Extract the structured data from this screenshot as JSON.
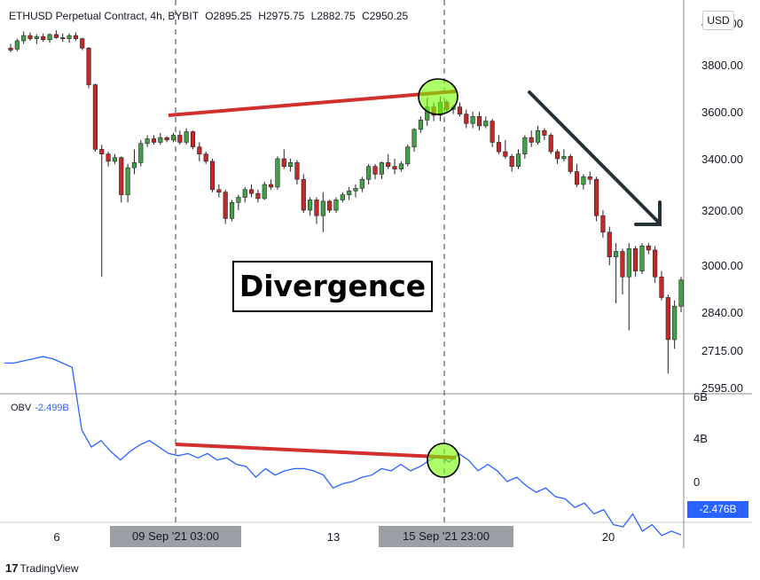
{
  "header": {
    "symbol": "ETHUSD Perpetual Contract, 4h, BYBIT",
    "open": "O2895.25",
    "high": "H2975.75",
    "low": "L2882.75",
    "close": "C2950.25"
  },
  "currency_button": "USD",
  "annotation": {
    "label": "Divergence"
  },
  "obv_indicator": {
    "label": "OBV",
    "value": "-2.499B",
    "last_price_tag": "-2.476B"
  },
  "crosshair_labels": [
    "09 Sep '21   03:00",
    "15 Sep '21   23:00"
  ],
  "footer": {
    "brand": "TradingView",
    "logo_glyph": "17"
  },
  "colors": {
    "up": "#43a047",
    "down": "#c62828",
    "obv_line": "#2962ff",
    "divergence_line": "#d32f2f",
    "circle_fill": "#76ff03",
    "trend_arrow": "#263238"
  },
  "chart_data": [
    {
      "type": "candlestick",
      "ylim": [
        2595,
        4000
      ],
      "y_ticks": [
        "4000.00",
        "3800.00",
        "3600.00",
        "3400.00",
        "3200.00",
        "3000.00",
        "2840.00",
        "2715.00",
        "2595.00"
      ],
      "x_ticks": [
        "6",
        "13",
        "20"
      ],
      "candles": [
        [
          3880,
          3900,
          3860,
          3870
        ],
        [
          3875,
          3925,
          3865,
          3915
        ],
        [
          3915,
          3960,
          3900,
          3940
        ],
        [
          3940,
          3955,
          3915,
          3925
        ],
        [
          3925,
          3945,
          3900,
          3935
        ],
        [
          3935,
          3950,
          3910,
          3920
        ],
        [
          3920,
          3950,
          3905,
          3945
        ],
        [
          3945,
          3965,
          3925,
          3930
        ],
        [
          3930,
          3950,
          3910,
          3925
        ],
        [
          3925,
          3950,
          3905,
          3940
        ],
        [
          3940,
          3955,
          3915,
          3925
        ],
        [
          3925,
          3930,
          3870,
          3880
        ],
        [
          3880,
          3885,
          3700,
          3715
        ],
        [
          3715,
          3720,
          3430,
          3440
        ],
        [
          3440,
          3460,
          2960,
          3420
        ],
        [
          3420,
          3430,
          3370,
          3390
        ],
        [
          3390,
          3420,
          3380,
          3405
        ],
        [
          3405,
          3410,
          3230,
          3260
        ],
        [
          3260,
          3380,
          3230,
          3365
        ],
        [
          3365,
          3440,
          3340,
          3385
        ],
        [
          3385,
          3480,
          3370,
          3465
        ],
        [
          3465,
          3500,
          3450,
          3485
        ],
        [
          3485,
          3500,
          3460,
          3470
        ],
        [
          3470,
          3510,
          3460,
          3490
        ],
        [
          3490,
          3495,
          3470,
          3480
        ],
        [
          3480,
          3510,
          3470,
          3500
        ],
        [
          3500,
          3520,
          3460,
          3470
        ],
        [
          3470,
          3530,
          3460,
          3515
        ],
        [
          3515,
          3520,
          3440,
          3450
        ],
        [
          3450,
          3470,
          3390,
          3420
        ],
        [
          3420,
          3430,
          3380,
          3390
        ],
        [
          3390,
          3400,
          3270,
          3280
        ],
        [
          3280,
          3300,
          3250,
          3270
        ],
        [
          3270,
          3280,
          3150,
          3170
        ],
        [
          3170,
          3240,
          3160,
          3230
        ],
        [
          3230,
          3260,
          3200,
          3250
        ],
        [
          3250,
          3290,
          3230,
          3280
        ],
        [
          3280,
          3300,
          3250,
          3265
        ],
        [
          3265,
          3280,
          3230,
          3245
        ],
        [
          3245,
          3310,
          3240,
          3300
        ],
        [
          3300,
          3320,
          3280,
          3290
        ],
        [
          3290,
          3410,
          3280,
          3400
        ],
        [
          3400,
          3440,
          3360,
          3370
        ],
        [
          3370,
          3400,
          3350,
          3385
        ],
        [
          3385,
          3395,
          3300,
          3320
        ],
        [
          3320,
          3340,
          3190,
          3200
        ],
        [
          3200,
          3250,
          3180,
          3240
        ],
        [
          3240,
          3250,
          3150,
          3180
        ],
        [
          3180,
          3270,
          3120,
          3235
        ],
        [
          3235,
          3240,
          3190,
          3200
        ],
        [
          3200,
          3250,
          3190,
          3240
        ],
        [
          3240,
          3270,
          3230,
          3260
        ],
        [
          3260,
          3290,
          3240,
          3275
        ],
        [
          3275,
          3300,
          3250,
          3285
        ],
        [
          3285,
          3330,
          3270,
          3320
        ],
        [
          3320,
          3380,
          3300,
          3370
        ],
        [
          3370,
          3380,
          3320,
          3340
        ],
        [
          3340,
          3390,
          3320,
          3385
        ],
        [
          3385,
          3420,
          3360,
          3370
        ],
        [
          3370,
          3400,
          3340,
          3360
        ],
        [
          3360,
          3390,
          3350,
          3380
        ],
        [
          3380,
          3460,
          3370,
          3450
        ],
        [
          3450,
          3530,
          3430,
          3525
        ],
        [
          3525,
          3580,
          3510,
          3565
        ],
        [
          3565,
          3660,
          3540,
          3620
        ],
        [
          3620,
          3640,
          3560,
          3585
        ],
        [
          3585,
          3665,
          3560,
          3640
        ],
        [
          3640,
          3650,
          3600,
          3610
        ],
        [
          3610,
          3630,
          3590,
          3620
        ],
        [
          3620,
          3640,
          3580,
          3590
        ],
        [
          3590,
          3610,
          3530,
          3550
        ],
        [
          3550,
          3600,
          3530,
          3580
        ],
        [
          3580,
          3600,
          3520,
          3540
        ],
        [
          3540,
          3580,
          3530,
          3560
        ],
        [
          3560,
          3570,
          3450,
          3470
        ],
        [
          3470,
          3500,
          3420,
          3430
        ],
        [
          3430,
          3480,
          3400,
          3410
        ],
        [
          3410,
          3420,
          3350,
          3370
        ],
        [
          3370,
          3440,
          3360,
          3420
        ],
        [
          3420,
          3500,
          3400,
          3490
        ],
        [
          3490,
          3520,
          3450,
          3470
        ],
        [
          3470,
          3540,
          3460,
          3520
        ],
        [
          3520,
          3530,
          3480,
          3500
        ],
        [
          3500,
          3510,
          3420,
          3430
        ],
        [
          3430,
          3440,
          3380,
          3400
        ],
        [
          3400,
          3440,
          3390,
          3410
        ],
        [
          3410,
          3420,
          3340,
          3350
        ],
        [
          3350,
          3380,
          3290,
          3300
        ],
        [
          3300,
          3340,
          3280,
          3330
        ],
        [
          3330,
          3350,
          3300,
          3320
        ],
        [
          3320,
          3330,
          3160,
          3180
        ],
        [
          3180,
          3200,
          3100,
          3120
        ],
        [
          3120,
          3140,
          3000,
          3030
        ],
        [
          3030,
          3080,
          2870,
          3050
        ],
        [
          3050,
          3060,
          2900,
          2960
        ],
        [
          2960,
          3080,
          2780,
          3060
        ],
        [
          3060,
          3070,
          2960,
          2980
        ],
        [
          2980,
          3080,
          2970,
          3070
        ],
        [
          3070,
          3080,
          3040,
          3055
        ],
        [
          3055,
          3070,
          2940,
          2960
        ],
        [
          2960,
          2980,
          2880,
          2890
        ],
        [
          2890,
          2900,
          2640,
          2750
        ],
        [
          2750,
          2880,
          2720,
          2860
        ],
        [
          2860,
          2960,
          2840,
          2950
        ]
      ]
    },
    {
      "type": "line",
      "name": "OBV",
      "y_ticks": [
        "6B",
        "4B",
        "0"
      ],
      "ylim": [
        -3.5,
        6.5
      ],
      "values": [
        5.5,
        5.5,
        5.6,
        5.7,
        5.8,
        5.7,
        5.5,
        5.3,
        2.4,
        1.6,
        1.9,
        1.4,
        1.0,
        1.4,
        1.7,
        1.9,
        1.6,
        1.3,
        1.2,
        1.3,
        1.1,
        1.3,
        1.0,
        1.1,
        0.8,
        0.7,
        0.2,
        0.6,
        0.3,
        0.5,
        0.6,
        0.6,
        0.5,
        0.3,
        -0.3,
        -0.1,
        0.0,
        0.2,
        0.3,
        0.6,
        0.5,
        0.8,
        0.5,
        0.7,
        1.0,
        1.2,
        0.9,
        1.3,
        1.0,
        0.5,
        0.8,
        0.5,
        0.0,
        0.2,
        -0.2,
        -0.5,
        -0.3,
        -0.7,
        -0.8,
        -1.2,
        -1.0,
        -1.5,
        -1.3,
        -2.0,
        -2.1,
        -1.5,
        -2.3,
        -2.0,
        -2.5,
        -2.3,
        -2.476
      ]
    }
  ]
}
